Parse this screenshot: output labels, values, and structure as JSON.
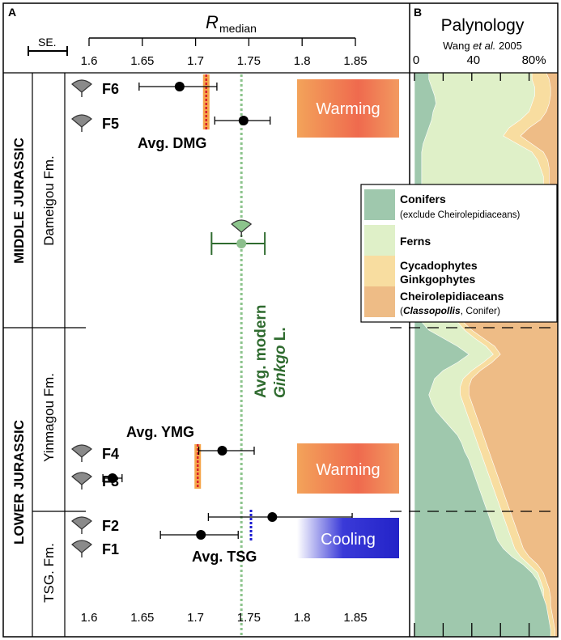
{
  "panels": {
    "a_label": "A",
    "b_label": "B"
  },
  "chart_data": [
    {
      "type": "scatter",
      "panel": "A",
      "xlabel_main": "R",
      "xlabel_sub": "median",
      "xlim": [
        1.6,
        1.875
      ],
      "xticks": [
        "1.6",
        "1.65",
        "1.7",
        "1.75",
        "1.8",
        "1.85"
      ],
      "se_label": "SE.",
      "points": [
        {
          "label": "F6",
          "value": 1.685,
          "err": [
            1.647,
            1.72
          ]
        },
        {
          "label": "F5",
          "value": 1.745,
          "err": [
            1.718,
            1.77
          ]
        },
        {
          "label": "F4",
          "value": 1.725,
          "err": [
            1.703,
            1.755
          ]
        },
        {
          "label": "F3",
          "value": 1.622,
          "err": [
            1.613,
            1.631
          ]
        },
        {
          "label": "F2",
          "value": 1.772,
          "err": [
            1.712,
            1.847
          ]
        },
        {
          "label": "F1",
          "value": 1.705,
          "err": [
            1.667,
            1.74
          ]
        }
      ],
      "averages": [
        {
          "label": "Avg. DMG",
          "value": 1.71,
          "style": "warm"
        },
        {
          "label": "Avg. YMG",
          "value": 1.702,
          "style": "warm"
        },
        {
          "label": "Avg. TSG",
          "value": 1.752,
          "style": "cool"
        }
      ],
      "modern": {
        "line1": "Avg. modern",
        "line2": "Ginkgo",
        "line3": " L.",
        "value": 1.743,
        "err": [
          1.715,
          1.765
        ]
      },
      "climate_boxes": [
        {
          "label": "Warming",
          "style": "warm"
        },
        {
          "label": "Warming",
          "style": "warm"
        },
        {
          "label": "Cooling",
          "style": "cool"
        }
      ],
      "epochs": [
        "MIDDLE JURASSIC",
        "LOWER JURASSIC"
      ],
      "formations": [
        "Dameigou Fm.",
        "Yinmagou Fm.",
        "TSG. Fm."
      ]
    },
    {
      "type": "area",
      "panel": "B",
      "title": "Palynology",
      "source_pre": "Wang ",
      "source_italic": "et al.",
      "source_post": " 2005",
      "xticks": [
        "0",
        "40",
        "80%"
      ],
      "xlim": [
        0,
        100
      ],
      "y": [
        0,
        8,
        18,
        28,
        38,
        48,
        58,
        68,
        78,
        88,
        98,
        108,
        118,
        128,
        138,
        148,
        158,
        168,
        178,
        188,
        198,
        208,
        218,
        228,
        238,
        248,
        258,
        268,
        278,
        288,
        298,
        308,
        318,
        328,
        338,
        348,
        358,
        368,
        378,
        388,
        398,
        408,
        418,
        428,
        438,
        448,
        458,
        468,
        478,
        488,
        498,
        508,
        518,
        528,
        538,
        548,
        558,
        568,
        578,
        588,
        598,
        608,
        618,
        628,
        638,
        648,
        658,
        668,
        678,
        688,
        697
      ],
      "series": [
        {
          "name": "Conifers",
          "values": [
            10,
            10,
            12,
            14,
            15,
            13,
            12,
            10,
            8,
            6,
            5,
            5,
            5,
            5,
            5,
            5,
            4,
            4,
            4,
            4,
            4,
            4,
            4,
            4,
            4,
            4,
            4,
            4,
            4,
            4,
            4,
            5,
            10,
            20,
            30,
            38,
            30,
            20,
            14,
            12,
            10,
            12,
            15,
            20,
            25,
            30,
            33,
            35,
            38,
            40,
            42,
            44,
            46,
            48,
            50,
            52,
            54,
            56,
            58,
            62,
            68,
            76,
            82,
            86,
            88,
            90,
            92,
            93,
            94,
            95,
            95
          ]
        },
        {
          "name": "Ferns",
          "values": [
            82,
            82,
            84,
            84,
            82,
            80,
            74,
            66,
            62,
            72,
            82,
            86,
            88,
            90,
            90,
            90,
            90,
            90,
            90,
            90,
            90,
            90,
            90,
            90,
            90,
            90,
            90,
            90,
            90,
            90,
            90,
            30,
            35,
            42,
            50,
            55,
            48,
            40,
            34,
            32,
            32,
            34,
            36,
            38,
            40,
            42,
            44,
            46,
            48,
            50,
            52,
            54,
            56,
            58,
            60,
            62,
            64,
            66,
            68,
            70,
            74,
            80,
            86,
            88,
            90,
            90,
            90,
            91,
            92,
            93,
            93
          ]
        },
        {
          "name": "Cycadophytes Ginkgophytes",
          "values": [
            92,
            94,
            95,
            95,
            94,
            92,
            88,
            80,
            74,
            82,
            90,
            93,
            94,
            94,
            94,
            94,
            94,
            94,
            94,
            94,
            94,
            94,
            94,
            94,
            94,
            94,
            94,
            94,
            94,
            94,
            94,
            34,
            40,
            48,
            56,
            60,
            54,
            46,
            40,
            38,
            38,
            40,
            42,
            44,
            46,
            48,
            50,
            52,
            54,
            56,
            58,
            60,
            62,
            64,
            66,
            68,
            70,
            72,
            74,
            76,
            80,
            86,
            90,
            92,
            94,
            95,
            95,
            96,
            97,
            98,
            98
          ]
        },
        {
          "name": "Cheirolepidiaceans",
          "values": [
            100,
            100,
            100,
            100,
            100,
            100,
            100,
            100,
            100,
            100,
            100,
            100,
            100,
            100,
            100,
            100,
            100,
            100,
            100,
            100,
            100,
            100,
            100,
            100,
            100,
            100,
            100,
            100,
            100,
            100,
            100,
            100,
            100,
            100,
            100,
            100,
            100,
            100,
            100,
            100,
            100,
            100,
            100,
            100,
            100,
            100,
            100,
            100,
            100,
            100,
            100,
            100,
            100,
            100,
            100,
            100,
            100,
            100,
            100,
            100,
            100,
            100,
            100,
            100,
            100,
            100,
            100,
            100,
            100,
            100,
            100
          ]
        }
      ],
      "legend": [
        {
          "line1": "Conifers",
          "line2": "(exclude Cheirolepidiaceans)",
          "color": "#9fc8ad"
        },
        {
          "line1": "Ferns",
          "line2": "",
          "color": "#dff0c8"
        },
        {
          "line1": "Cycadophytes",
          "line2": "Ginkgophytes",
          "color": "#f8dda0"
        },
        {
          "line1": "Cheirolepidiaceans",
          "line2_pre": "(",
          "line2_bold": "Classopollis",
          "line2_post": ", Conifer)",
          "color": "#eebc86"
        }
      ],
      "colors": {
        "conifers": "#9fc8ad",
        "ferns": "#dff0c8",
        "cycado": "#f8dda0",
        "cheiro": "#eebc86"
      }
    }
  ]
}
